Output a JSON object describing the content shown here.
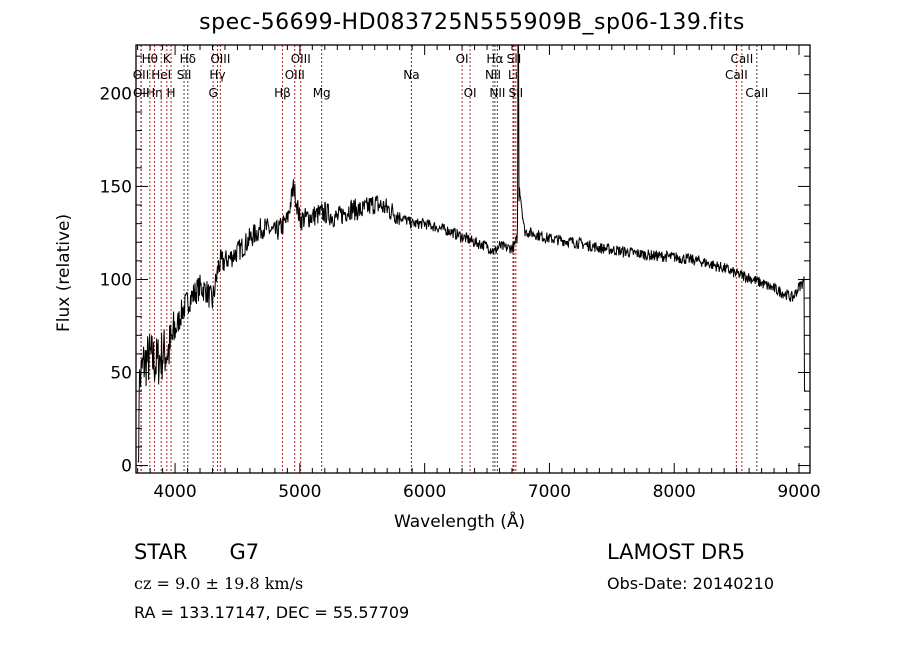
{
  "chart_data": {
    "type": "line",
    "title": "spec-56699-HD083725N555909B_sp06-139.fits",
    "xlabel": "Wavelength (Å)",
    "ylabel": "Flux (relative)",
    "xlim": [
      3687,
      9088
    ],
    "ylim": [
      -4,
      226
    ],
    "xticks": [
      4000,
      5000,
      6000,
      7000,
      8000,
      9000
    ],
    "xtick_labels": [
      "4000",
      "5000",
      "6000",
      "7000",
      "8000",
      "9000"
    ],
    "yticks": [
      0,
      50,
      100,
      150,
      200
    ],
    "ytick_labels": [
      "0",
      "50",
      "100",
      "150",
      "200"
    ],
    "grid": false,
    "series": [
      {
        "name": "spectrum",
        "x": [
          3700,
          3750,
          3800,
          3850,
          3900,
          3950,
          4000,
          4050,
          4100,
          4150,
          4200,
          4250,
          4300,
          4350,
          4400,
          4450,
          4500,
          4550,
          4600,
          4650,
          4700,
          4750,
          4800,
          4850,
          4900,
          4950,
          5000,
          5050,
          5100,
          5200,
          5300,
          5400,
          5500,
          5600,
          5700,
          5800,
          5900,
          6000,
          6100,
          6200,
          6300,
          6400,
          6500,
          6560,
          6600,
          6650,
          6700,
          6720,
          6740,
          6760,
          6800,
          6900,
          7000,
          7200,
          7400,
          7600,
          7800,
          8000,
          8200,
          8400,
          8500,
          8600,
          8700,
          8800,
          8900,
          8950,
          9000,
          9050
        ],
        "y": [
          40,
          55,
          58,
          55,
          60,
          62,
          72,
          82,
          88,
          92,
          96,
          94,
          88,
          108,
          110,
          112,
          115,
          118,
          122,
          125,
          128,
          127,
          125,
          128,
          132,
          150,
          132,
          133,
          134,
          136,
          133,
          138,
          137,
          141,
          138,
          134,
          130,
          130,
          128,
          126,
          123,
          120,
          118,
          115,
          118,
          117,
          117,
          118,
          122,
          150,
          126,
          124,
          122,
          120,
          117,
          115,
          113,
          112,
          110,
          106,
          103,
          101,
          98,
          95,
          92,
          90,
          96,
          100
        ]
      }
    ],
    "line_markers": [
      {
        "label": "OII",
        "wave": 3727,
        "row": 2,
        "color": "#b22222"
      },
      {
        "label": "OII",
        "wave": 3729,
        "row": 3,
        "color": "#b22222"
      },
      {
        "label": "Hθ",
        "wave": 3798,
        "row": 1,
        "color": "#b22222"
      },
      {
        "label": "Hη",
        "wave": 3835,
        "row": 3,
        "color": "#b22222"
      },
      {
        "label": "HeI",
        "wave": 3889,
        "row": 2,
        "color": "#b22222"
      },
      {
        "label": "K",
        "wave": 3934,
        "row": 1,
        "color": "#b22222"
      },
      {
        "label": "H",
        "wave": 3968,
        "row": 3,
        "color": "#b22222"
      },
      {
        "label": "SII",
        "wave": 4072,
        "row": 2,
        "color": "#444444"
      },
      {
        "label": "Hδ",
        "wave": 4102,
        "row": 1,
        "color": "#444444"
      },
      {
        "label": "G",
        "wave": 4305,
        "row": 3,
        "color": "#b22222"
      },
      {
        "label": "Hγ",
        "wave": 4340,
        "row": 2,
        "color": "#b22222"
      },
      {
        "label": "OIII",
        "wave": 4363,
        "row": 1,
        "color": "#b22222"
      },
      {
        "label": "Hβ",
        "wave": 4861,
        "row": 3,
        "color": "#b22222"
      },
      {
        "label": "OIII",
        "wave": 4959,
        "row": 2,
        "color": "#b22222"
      },
      {
        "label": "OIII",
        "wave": 5007,
        "row": 1,
        "color": "#b22222"
      },
      {
        "label": "Mg",
        "wave": 5175,
        "row": 3,
        "color": "#444444"
      },
      {
        "label": "Na",
        "wave": 5894,
        "row": 2,
        "color": "#444444"
      },
      {
        "label": "OI",
        "wave": 6300,
        "row": 1,
        "color": "#b22222"
      },
      {
        "label": "OI",
        "wave": 6364,
        "row": 3,
        "color": "#b22222"
      },
      {
        "label": "NII",
        "wave": 6548,
        "row": 2,
        "color": "#444444"
      },
      {
        "label": "Hα",
        "wave": 6563,
        "row": 1,
        "color": "#444444"
      },
      {
        "label": "NII",
        "wave": 6583,
        "row": 3,
        "color": "#444444"
      },
      {
        "label": "Li",
        "wave": 6708,
        "row": 2,
        "color": "#b22222"
      },
      {
        "label": "SII",
        "wave": 6716,
        "row": 1,
        "color": "#b22222"
      },
      {
        "label": "SII",
        "wave": 6731,
        "row": 3,
        "color": "#b22222"
      },
      {
        "label": "CaII",
        "wave": 8498,
        "row": 2,
        "color": "#b22222"
      },
      {
        "label": "CaII",
        "wave": 8542,
        "row": 1,
        "color": "#b22222"
      },
      {
        "label": "CaII",
        "wave": 8662,
        "row": 3,
        "color": "#444444"
      }
    ]
  },
  "info": {
    "class": "STAR",
    "subclass": "G7",
    "survey": "LAMOST DR5",
    "cz": "cz = 9.0 ± 19.8 km/s",
    "obs_date": "Obs-Date: 20140210",
    "coords": "RA = 133.17147, DEC =  55.57709"
  }
}
